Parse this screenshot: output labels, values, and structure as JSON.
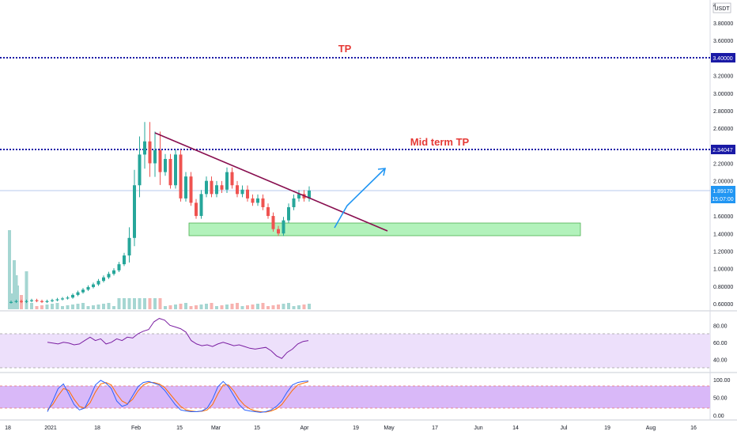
{
  "currency": "USDT",
  "price_scale_badge": "4",
  "annotations": {
    "tp_label": "TP",
    "midterm_label": "Mid term TP"
  },
  "price_tags": {
    "tp": "3.40000",
    "midterm": "2.34047",
    "current": "1.89170",
    "countdown": "15:07:00"
  },
  "colors": {
    "up": "#26a69a",
    "down": "#ef5350",
    "wedge": "#0d47a1",
    "trendline": "#880e4f",
    "target_line": "#1a1aa6",
    "projection": "#2196f3",
    "support_zone": "#b2f2bb",
    "rsi": "#7b1fa2",
    "stoch_k": "#2962ff",
    "stoch_d": "#ff6d00",
    "band": "#ede0fb"
  },
  "chart_data": [
    {
      "type": "candlestick",
      "title": "",
      "price_axis_ticks": [
        "3.80000",
        "3.60000",
        "3.20000",
        "3.00000",
        "2.80000",
        "2.60000",
        "2.20000",
        "2.00000",
        "1.60000",
        "1.40000",
        "1.20000",
        "1.00000",
        "0.80000",
        "0.60000"
      ],
      "time_axis_ticks": [
        "18",
        "2021",
        "18",
        "Feb",
        "15",
        "Mar",
        "15",
        "Apr",
        "19",
        "May",
        "17",
        "Jun",
        "14",
        "Jul",
        "19",
        "Aug",
        "16"
      ],
      "horizontal_levels": [
        {
          "label": "TP",
          "price": 3.4
        },
        {
          "label": "Mid term TP",
          "price": 2.34047
        }
      ],
      "current_price": 1.8917,
      "support_zone": [
        1.38,
        1.54
      ],
      "trendline": {
        "from": [
          "2021-02-08",
          2.55
        ],
        "to": [
          "2021-04-22",
          1.45
        ]
      },
      "projection": {
        "points": [
          [
            "2021-04-08",
            1.5
          ],
          [
            "2021-04-12",
            1.72
          ],
          [
            "2021-04-20",
            2.15
          ]
        ]
      },
      "ohlc_close_approx": [
        0.62,
        0.63,
        0.62,
        0.63,
        0.64,
        0.63,
        0.62,
        0.63,
        0.64,
        0.65,
        0.66,
        0.67,
        0.7,
        0.73,
        0.76,
        0.79,
        0.82,
        0.86,
        0.9,
        0.94,
        0.98,
        1.05,
        1.15,
        1.35,
        1.95,
        2.3,
        2.45,
        2.2,
        2.35,
        2.1,
        2.25,
        1.95,
        2.3,
        1.8,
        2.05,
        1.75,
        1.6,
        1.85,
        2.0,
        1.85,
        1.95,
        1.9,
        2.1,
        1.95,
        1.85,
        1.9,
        1.8,
        1.75,
        1.8,
        1.7,
        1.6,
        1.45,
        1.4,
        1.55,
        1.7,
        1.8,
        1.85,
        1.8,
        1.89
      ]
    },
    {
      "type": "line",
      "name": "RSI",
      "y_ticks": [
        "80.00",
        "60.00",
        "40.00"
      ],
      "ylim": [
        30,
        90
      ],
      "band": [
        30,
        70
      ],
      "values": [
        60,
        59,
        58,
        60,
        59,
        57,
        58,
        62,
        66,
        62,
        64,
        58,
        60,
        64,
        62,
        66,
        65,
        70,
        73,
        75,
        84,
        88,
        86,
        80,
        78,
        76,
        72,
        62,
        58,
        56,
        57,
        55,
        58,
        60,
        58,
        56,
        57,
        55,
        53,
        52,
        53,
        54,
        50,
        44,
        41,
        48,
        52,
        58,
        61,
        62
      ]
    },
    {
      "type": "line",
      "name": "Stoch RSI",
      "y_ticks": [
        "100.00",
        "50.00",
        "0.00"
      ],
      "ylim": [
        0,
        100
      ],
      "band": [
        20,
        80
      ],
      "series": [
        {
          "name": "K",
          "values": [
            10,
            40,
            75,
            88,
            60,
            30,
            15,
            20,
            50,
            85,
            98,
            90,
            75,
            40,
            25,
            30,
            55,
            80,
            92,
            95,
            90,
            85,
            70,
            50,
            30,
            15,
            12,
            10,
            10,
            12,
            20,
            45,
            80,
            95,
            80,
            55,
            30,
            15,
            12,
            10,
            8,
            10,
            15,
            25,
            40,
            65,
            85,
            92,
            95,
            96
          ]
        },
        {
          "name": "D",
          "values": [
            15,
            30,
            55,
            75,
            70,
            45,
            25,
            20,
            35,
            65,
            88,
            92,
            85,
            60,
            40,
            32,
            45,
            68,
            85,
            92,
            92,
            88,
            78,
            60,
            42,
            25,
            15,
            12,
            10,
            11,
            15,
            30,
            60,
            85,
            85,
            68,
            45,
            28,
            18,
            12,
            10,
            9,
            12,
            18,
            30,
            50,
            70,
            85,
            90,
            94
          ]
        }
      ]
    }
  ]
}
